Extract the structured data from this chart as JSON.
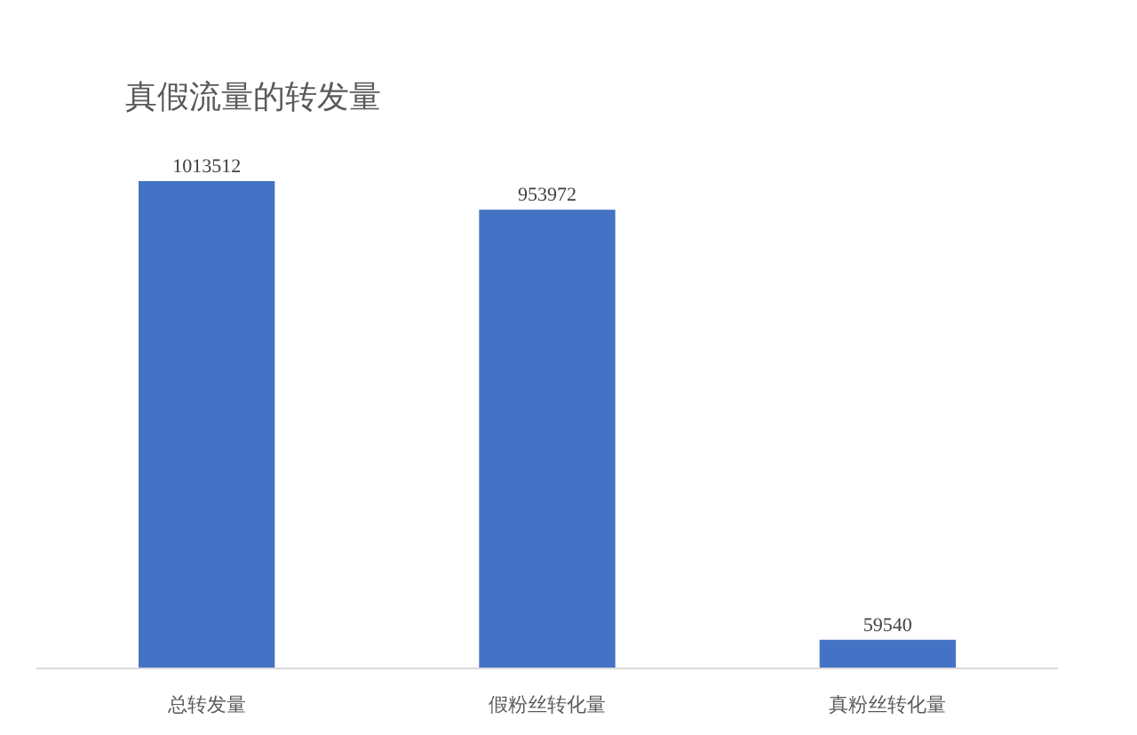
{
  "chart_data": {
    "type": "bar",
    "title": "真假流量的转发量",
    "categories": [
      "总转发量",
      "假粉丝转化量",
      "真粉丝转化量"
    ],
    "values": [
      1013512,
      953972,
      59540
    ],
    "color": "#4472c4",
    "data_labels": true
  }
}
